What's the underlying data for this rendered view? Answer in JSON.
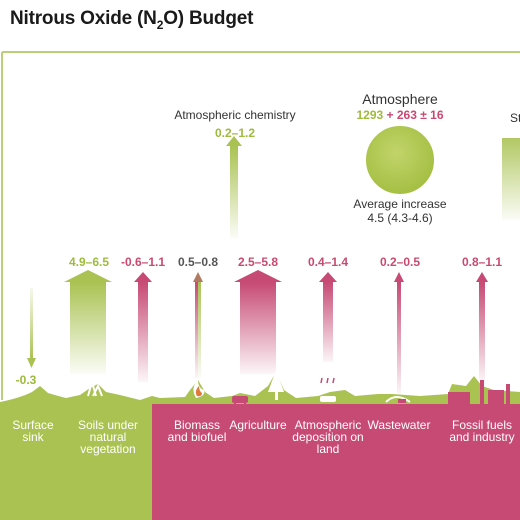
{
  "title": {
    "prefix": "Nitrous Oxide (N",
    "sub": "2",
    "suffix": "O) Budget"
  },
  "atmospheric_chemistry": {
    "label": "Atmospheric chemistry",
    "value": "0.2–1.2"
  },
  "atmosphere": {
    "label": "Atmosphere",
    "natural": "1293",
    "plus": "+",
    "anthropogenic": "263",
    "uncertainty": "± 16",
    "increase_label": "Average increase",
    "increase_value": "4.5 (4.3-4.6)"
  },
  "cut_off_text": "St",
  "fluxes": [
    {
      "value": "-0.3",
      "label": "Surface sink",
      "kind": "natural"
    },
    {
      "value": "4.9–6.5",
      "label": "Soils under natural vegetation",
      "kind": "natural"
    },
    {
      "value": "-0.6–1.1",
      "label": "",
      "kind": "anthropogenic"
    },
    {
      "value": "0.5–0.8",
      "label": "Biomass and biofuel",
      "kind": "anthropogenic"
    },
    {
      "value": "2.5–5.8",
      "label": "Agriculture",
      "kind": "anthropogenic"
    },
    {
      "value": "0.4–1.4",
      "label": "Atmospheric deposition on land",
      "kind": "anthropogenic"
    },
    {
      "value": "0.2–0.5",
      "label": "Wastewater",
      "kind": "anthropogenic"
    },
    {
      "value": "0.8–1.1",
      "label": "Fossil fuels and industry",
      "kind": "anthropogenic"
    }
  ],
  "colors": {
    "natural": "#a9c252",
    "anthropogenic": "#c64a74",
    "frame": "#b9cf7a"
  }
}
